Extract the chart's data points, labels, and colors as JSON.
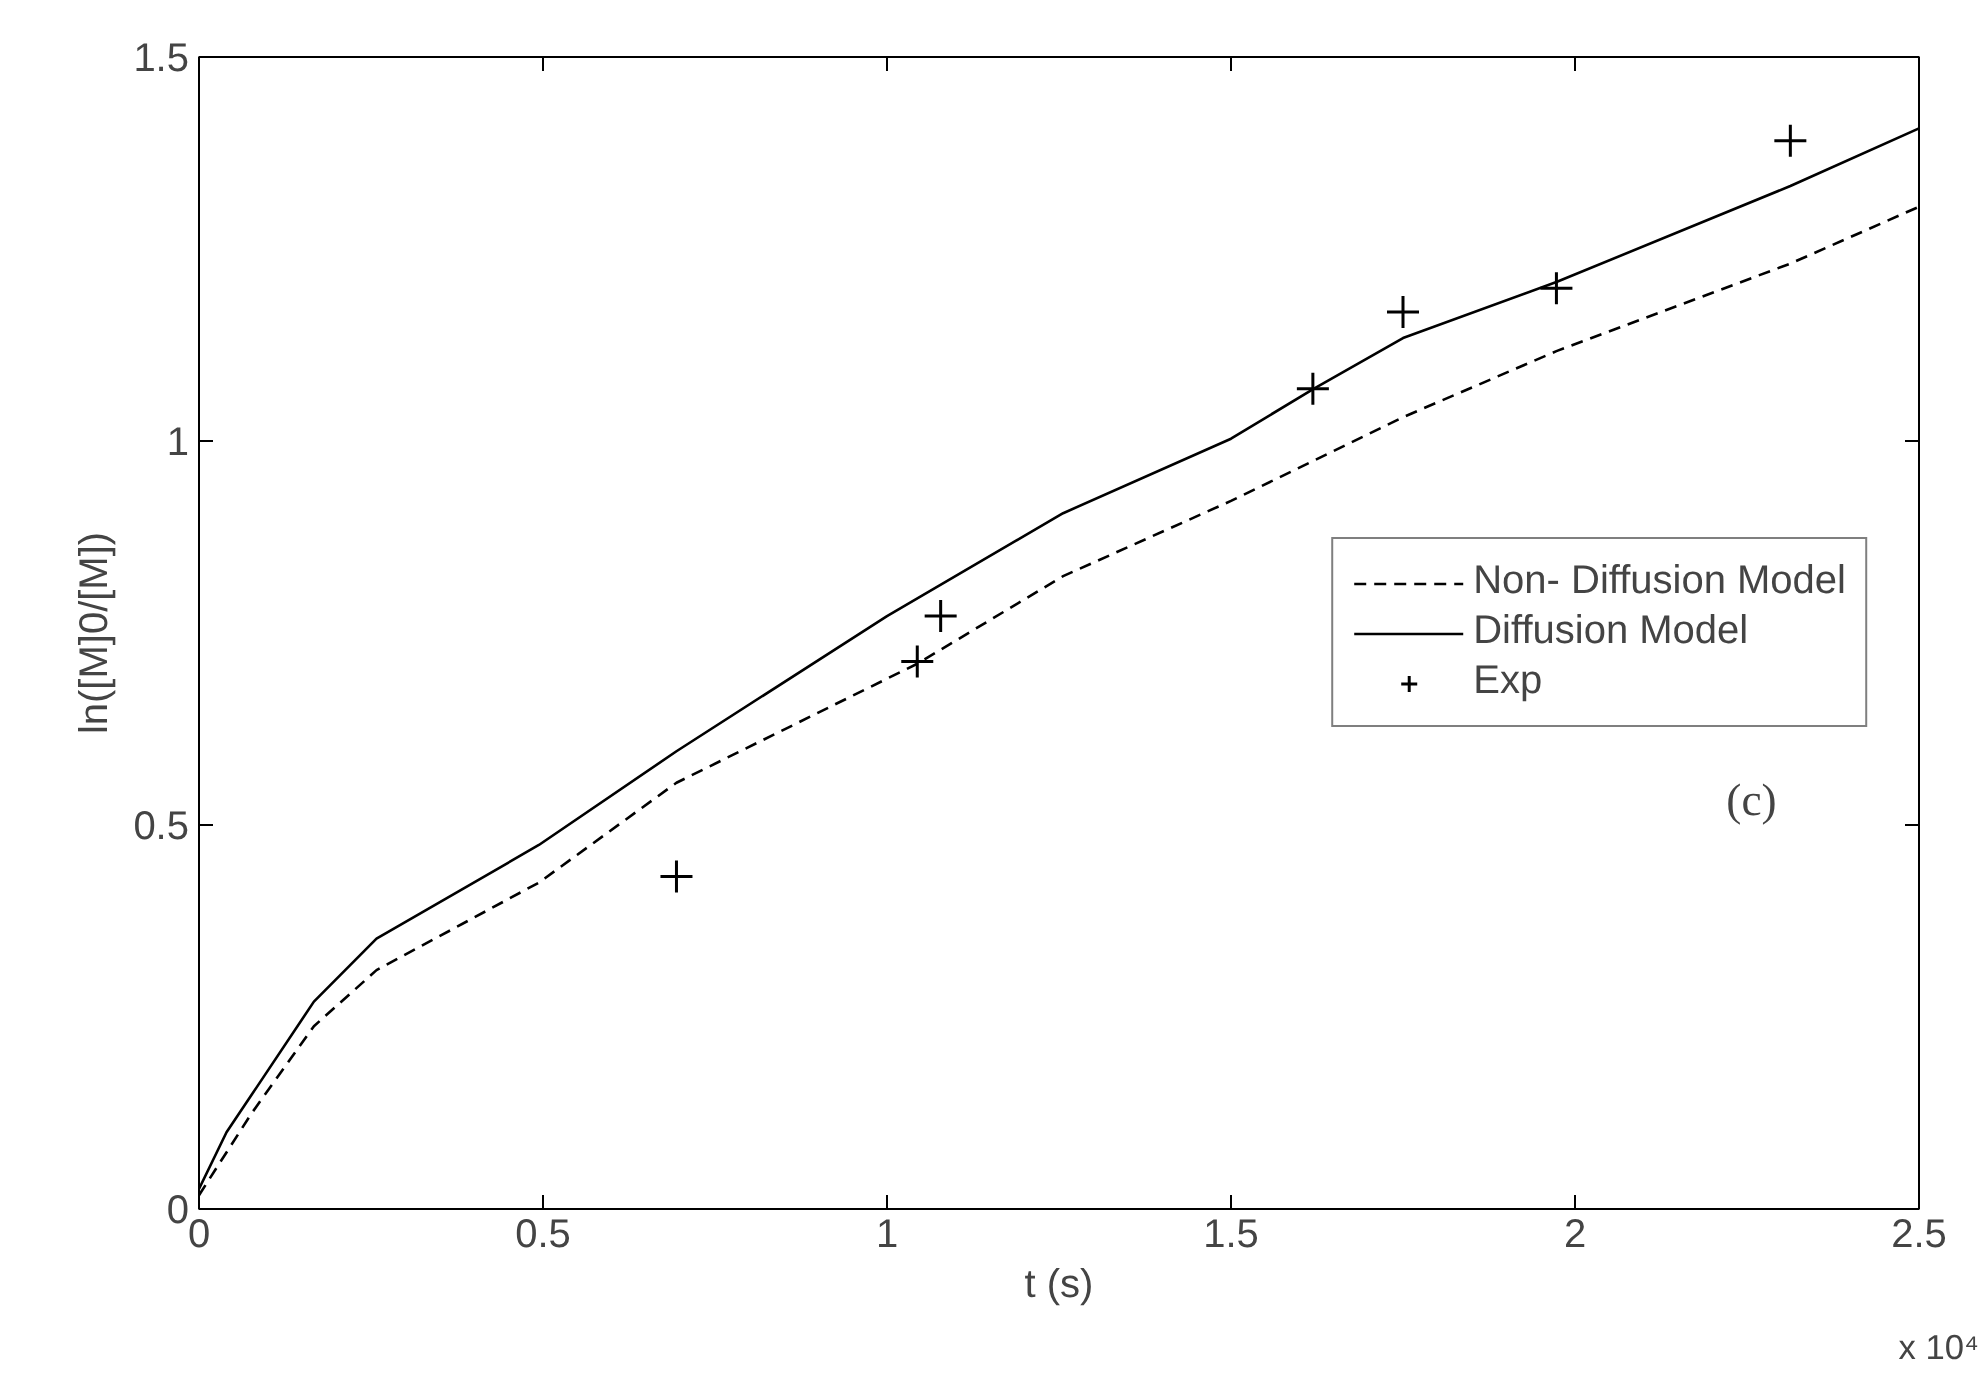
{
  "chart_data": {
    "type": "line",
    "xlabel": "t (s)",
    "ylabel": "ln([M]0/[M])",
    "xlim": [
      0,
      2.5
    ],
    "ylim": [
      0,
      1.5
    ],
    "xticks": [
      0,
      0.5,
      1,
      1.5,
      2,
      2.5
    ],
    "yticks": [
      0,
      0.5,
      1,
      1.5
    ],
    "grid": false,
    "legend": "right",
    "annotations": [
      "x 10⁴",
      "(c)"
    ],
    "series": [
      {
        "name": "Non- Diffusion Model",
        "line_style": "dashed",
        "color": "#000000",
        "x": [
          0,
          0.076,
          0.167,
          0.258,
          0.494,
          0.694,
          1.044,
          1.256,
          1.5,
          1.75,
          1.973,
          2.313,
          2.5
        ],
        "values": [
          0.018,
          0.124,
          0.238,
          0.311,
          0.425,
          0.555,
          0.71,
          0.824,
          0.922,
          1.031,
          1.117,
          1.231,
          1.305
        ]
      },
      {
        "name": "Diffusion Model",
        "line_style": "solid",
        "color": "#000000",
        "x": [
          0,
          0.04,
          0.076,
          0.167,
          0.258,
          0.494,
          0.694,
          1.0,
          1.256,
          1.5,
          1.62,
          1.75,
          1.973,
          2.313,
          2.5
        ],
        "values": [
          0.026,
          0.1,
          0.148,
          0.27,
          0.352,
          0.474,
          0.596,
          0.772,
          0.906,
          1.003,
          1.068,
          1.134,
          1.207,
          1.332,
          1.407
        ]
      },
      {
        "name": "Exp",
        "type": "scatter",
        "marker": "cross",
        "color": "#000000",
        "x": [
          0.694,
          1.044,
          1.078,
          1.619,
          1.75,
          1.973,
          2.313
        ],
        "values": [
          0.433,
          0.713,
          0.772,
          1.068,
          1.168,
          1.199,
          1.391
        ]
      }
    ]
  }
}
